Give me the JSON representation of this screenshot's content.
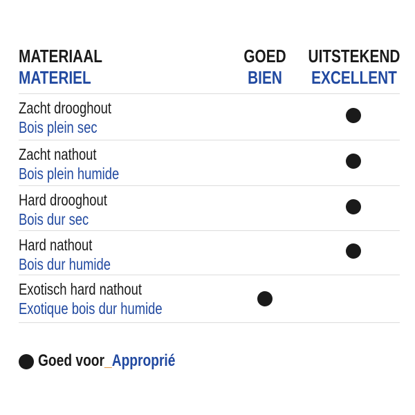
{
  "header": {
    "material_nl": "MATERIAAL",
    "material_fr": "MATERIEL",
    "good_nl": "GOED",
    "good_fr": "BIEN",
    "excellent_nl": "UITSTEKEND",
    "excellent_fr": "EXCELLENT"
  },
  "rows": [
    {
      "nl": "Zacht drooghout",
      "fr": "Bois plein sec",
      "rating": "excellent"
    },
    {
      "nl": "Zacht nathout",
      "fr": "Bois plein humide",
      "rating": "excellent"
    },
    {
      "nl": "Hard drooghout",
      "fr": "Bois dur sec",
      "rating": "excellent"
    },
    {
      "nl": "Hard nathout",
      "fr": "Bois dur humide",
      "rating": "excellent"
    },
    {
      "nl": "Exotisch hard nathout",
      "fr": "Exotique bois dur humide",
      "rating": "good"
    }
  ],
  "legend": {
    "nl": "Goed voor",
    "separator": "_",
    "fr": "Approprié",
    "icon": "filled-circle"
  },
  "colors": {
    "text": "#1a1a1a",
    "french": "#2149a0",
    "separator": "#e08a2a",
    "divider": "#dcdcdc"
  }
}
